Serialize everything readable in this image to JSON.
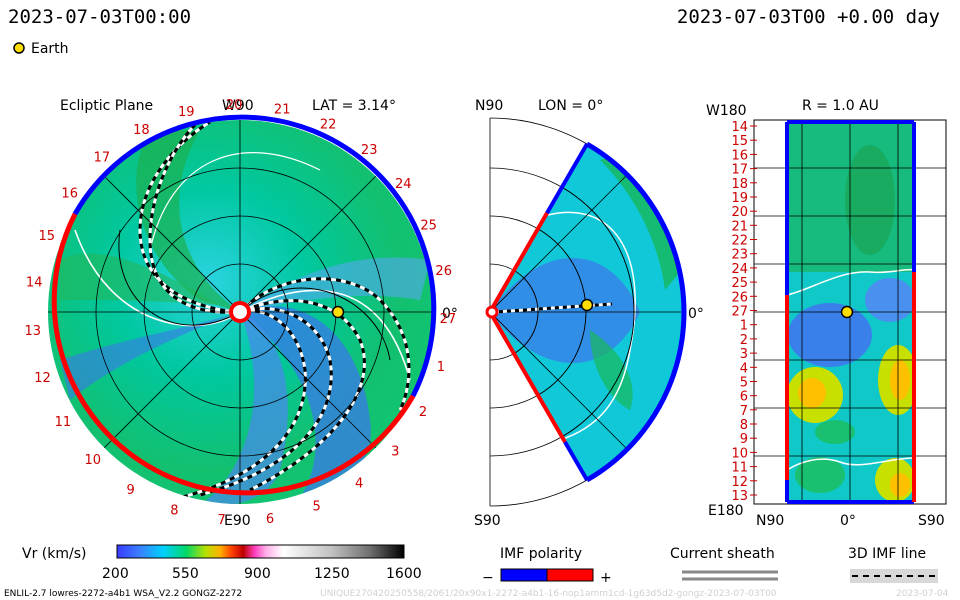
{
  "header": {
    "datetime_left": "2023-07-03T00:00",
    "datetime_right": "2023-07-03T00 +0.00 day",
    "legend_earth_label": "Earth"
  },
  "panels": {
    "ecliptic": {
      "title": "Ecliptic Plane",
      "top_label": "W90",
      "lat_label": "LAT = 3.14°",
      "right_label": "0°",
      "bottom_label": "E90",
      "carrington_labels": [
        "1",
        "2",
        "3",
        "4",
        "5",
        "6",
        "7",
        "8",
        "9",
        "10",
        "11",
        "12",
        "13",
        "14",
        "15",
        "16",
        "17",
        "18",
        "19",
        "20",
        "21",
        "22",
        "23",
        "24",
        "25",
        "26",
        "27"
      ]
    },
    "meridional": {
      "top_left_label": "N90",
      "lon_label": "LON = 0°",
      "right_label": "0°",
      "bottom_left_label": "S90"
    },
    "sphere": {
      "top_left_label": "W180",
      "radius_label": "R = 1.0 AU",
      "bottom_left_label": "E180",
      "bottom_labels": [
        "N90",
        "0°",
        "S90"
      ],
      "row_labels": [
        "14",
        "15",
        "16",
        "17",
        "18",
        "19",
        "20",
        "21",
        "22",
        "23",
        "24",
        "25",
        "26",
        "27",
        "1",
        "2",
        "3",
        "4",
        "5",
        "6",
        "7",
        "8",
        "9",
        "10",
        "11",
        "12",
        "13"
      ]
    }
  },
  "colorbar": {
    "label": "Vr (km/s)",
    "ticks": [
      "200",
      "550",
      "900",
      "1250",
      "1600"
    ],
    "range": [
      200,
      1600
    ]
  },
  "imf_legend": {
    "label": "IMF polarity",
    "minus": "−",
    "plus": "+",
    "colors": {
      "negative": "#0000ff",
      "positive": "#ff0000"
    }
  },
  "sheath_legend": {
    "label": "Current sheath"
  },
  "imf_line_legend": {
    "label": "3D IMF line"
  },
  "footer": {
    "model_info": "ENLIL-2.7 lowres-2272-a4b1 WSA_V2.2 GONGZ-2272",
    "run_info": "UNIQUE270420250558/2061/20x90x1-2272-a4b1-16-nop1amm1cd-1g63d5d2-gongz-2023-07-03T00",
    "run_date": "2023-07-04"
  },
  "colors": {
    "polarity_negative": "#0000ff",
    "polarity_positive": "#ff0000",
    "label_red": "#cc0000",
    "earth_marker": "#ffdd00"
  }
}
